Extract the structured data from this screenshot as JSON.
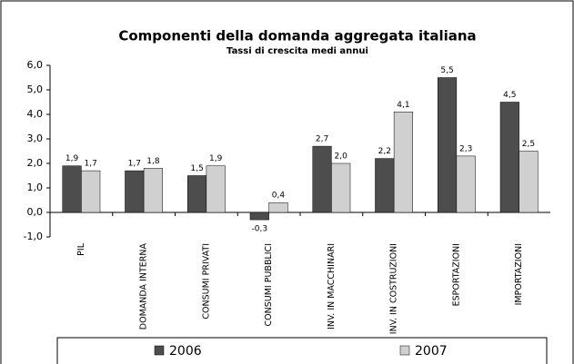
{
  "chart_data": {
    "type": "bar",
    "title": "Componenti della domanda aggregata italiana",
    "subtitle": "Tassi di crescita medi annui",
    "categories": [
      "PIL",
      "DOMANDA INTERNA",
      "CONSUMI PRIVATI",
      "CONSUMI PUBBLICI",
      "INV. IN MACCHINARI",
      "INV. IN COSTRUZIONI",
      "ESPORTAZIONI",
      "IMPORTAZIONI"
    ],
    "series": [
      {
        "name": "2006",
        "color": "#4d4d4d",
        "values": [
          1.9,
          1.7,
          1.5,
          -0.3,
          2.7,
          2.2,
          5.5,
          4.5
        ],
        "value_labels": [
          "1,9",
          "1,7",
          "1,5",
          "-0,3",
          "2,7",
          "2,2",
          "5,5",
          "4,5"
        ]
      },
      {
        "name": "2007",
        "color": "#d0d0d0",
        "values": [
          1.7,
          1.8,
          1.9,
          0.4,
          2.0,
          4.1,
          2.3,
          2.5
        ],
        "value_labels": [
          "1,7",
          "1,8",
          "1,9",
          "0,4",
          "2,0",
          "4,1",
          "2,3",
          "2,5"
        ]
      }
    ],
    "ylim": [
      -1,
      6
    ],
    "yticks": [
      {
        "value": -1,
        "label": "-1,0"
      },
      {
        "value": 0,
        "label": "0,0"
      },
      {
        "value": 1,
        "label": "1,0"
      },
      {
        "value": 2,
        "label": "2,0"
      },
      {
        "value": 3,
        "label": "3,0"
      },
      {
        "value": 4,
        "label": "4,0"
      },
      {
        "value": 5,
        "label": "5,0"
      },
      {
        "value": 6,
        "label": "6,0"
      }
    ],
    "legend": "bottom"
  }
}
